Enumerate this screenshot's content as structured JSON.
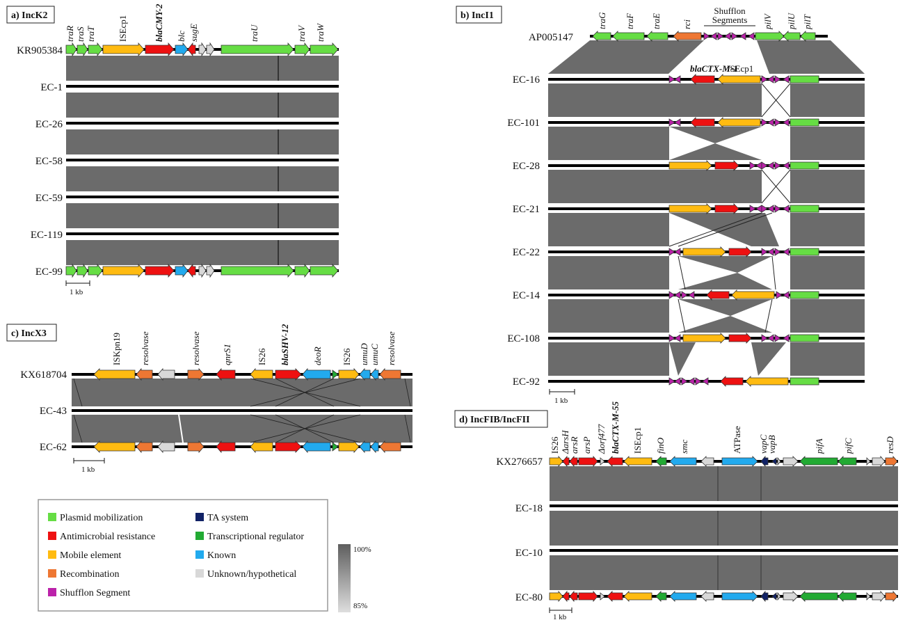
{
  "legend": {
    "items": [
      {
        "label": "Plasmid mobilization",
        "color": "#66dd44"
      },
      {
        "label": "Antimicrobial resistance",
        "color": "#ee1111"
      },
      {
        "label": "Mobile element",
        "color": "#ffbb11"
      },
      {
        "label": "Recombination",
        "color": "#ee7733"
      },
      {
        "label": "Shufflon Segment",
        "color": "#bb22aa"
      },
      {
        "label": "TA system",
        "color": "#112266"
      },
      {
        "label": "Transcriptional regulator",
        "color": "#22aa33"
      },
      {
        "label": "Known",
        "color": "#22aaee"
      },
      {
        "label": "Unknown/hypothetical",
        "color": "#d8d8d8"
      }
    ],
    "identity_high": "100%",
    "identity_low": "85%"
  },
  "scale_label": "1 kb",
  "panels": [
    {
      "id": "a",
      "title": "a) IncK2",
      "reference": "KR905384",
      "genomes": [
        "EC-1",
        "EC-26",
        "EC-58",
        "EC-59",
        "EC-119",
        "EC-99"
      ],
      "genes": [
        {
          "name": "traR",
          "function": "Plasmid mobilization"
        },
        {
          "name": "traS",
          "function": "Plasmid mobilization"
        },
        {
          "name": "traT",
          "function": "Plasmid mobilization"
        },
        {
          "name": "ISEcp1",
          "function": "Mobile element"
        },
        {
          "name": "blaCMY-2",
          "function": "Antimicrobial resistance"
        },
        {
          "name": "blc",
          "function": "Known"
        },
        {
          "name": "sugE",
          "function": "Antimicrobial resistance"
        },
        {
          "name": "traU",
          "function": "Plasmid mobilization"
        },
        {
          "name": "traV",
          "function": "Plasmid mobilization"
        },
        {
          "name": "traW",
          "function": "Plasmid mobilization"
        }
      ]
    },
    {
      "id": "b",
      "title": "b) IncI1",
      "reference": "AP005147",
      "genomes": [
        "EC-16",
        "EC-101",
        "EC-28",
        "EC-21",
        "EC-22",
        "EC-14",
        "EC-108",
        "EC-92"
      ],
      "genes": [
        {
          "name": "traG",
          "function": "Plasmid mobilization"
        },
        {
          "name": "traF",
          "function": "Plasmid mobilization"
        },
        {
          "name": "traE",
          "function": "Plasmid mobilization"
        },
        {
          "name": "rci",
          "function": "Recombination"
        },
        {
          "name": "Shufflon Segments",
          "function": "Shufflon Segment"
        },
        {
          "name": "pilV",
          "function": "Plasmid mobilization"
        },
        {
          "name": "pilU",
          "function": "Plasmid mobilization"
        },
        {
          "name": "pilT",
          "function": "Plasmid mobilization"
        },
        {
          "name": "blaCTX-M-1",
          "function": "Antimicrobial resistance"
        },
        {
          "name": "ISEcp1",
          "function": "Mobile element"
        }
      ]
    },
    {
      "id": "c",
      "title": "c) IncX3",
      "reference": "KX618704",
      "genomes": [
        "EC-43",
        "EC-62"
      ],
      "genes": [
        {
          "name": "ISKpn19",
          "function": "Mobile element"
        },
        {
          "name": "resolvase",
          "function": "Recombination"
        },
        {
          "name": "resolvase",
          "function": "Recombination"
        },
        {
          "name": "qnrS1",
          "function": "Antimicrobial resistance"
        },
        {
          "name": "IS26",
          "function": "Mobile element"
        },
        {
          "name": "blaSHV-12",
          "function": "Antimicrobial resistance"
        },
        {
          "name": "deoR",
          "function": "Known"
        },
        {
          "name": "IS26",
          "function": "Mobile element"
        },
        {
          "name": "umuD",
          "function": "Known"
        },
        {
          "name": "umuC",
          "function": "Known"
        },
        {
          "name": "resolvase",
          "function": "Recombination"
        }
      ]
    },
    {
      "id": "d",
      "title": "d) IncFIB/IncFII",
      "reference": "KX276657",
      "genomes": [
        "EC-18",
        "EC-10",
        "EC-80"
      ],
      "genes": [
        {
          "name": "IS26",
          "function": "Mobile element"
        },
        {
          "name": "ΔarsH",
          "function": "Antimicrobial resistance"
        },
        {
          "name": "arsR",
          "function": "Antimicrobial resistance"
        },
        {
          "name": "arsP",
          "function": "Antimicrobial resistance"
        },
        {
          "name": "Δorf477",
          "function": "Unknown/hypothetical"
        },
        {
          "name": "blaCTX-M-55",
          "function": "Antimicrobial resistance"
        },
        {
          "name": "ISEcp1",
          "function": "Mobile element"
        },
        {
          "name": "finO",
          "function": "Transcriptional regulator"
        },
        {
          "name": "smc",
          "function": "Known"
        },
        {
          "name": "ATPase",
          "function": "Known"
        },
        {
          "name": "vapC",
          "function": "TA system"
        },
        {
          "name": "vapB",
          "function": "TA system"
        },
        {
          "name": "pifA",
          "function": "Transcriptional regulator"
        },
        {
          "name": "pifC",
          "function": "Transcriptional regulator"
        },
        {
          "name": "resD",
          "function": "Recombination"
        }
      ]
    }
  ]
}
